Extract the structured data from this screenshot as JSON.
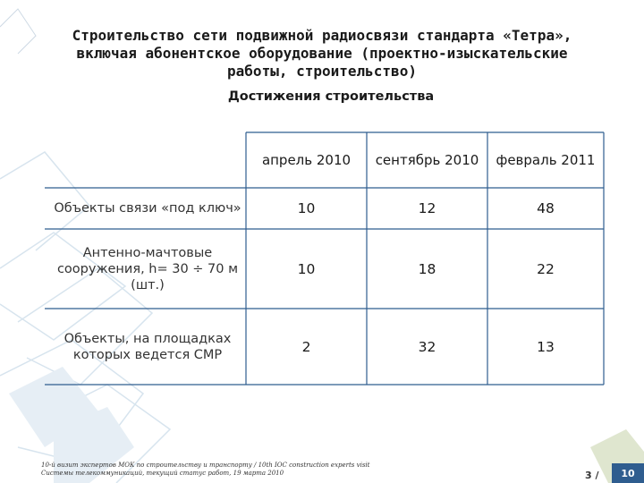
{
  "slide": {
    "title_lines": [
      "Строительство сети подвижной радиосвязи стандарта «Тетра»,",
      "включая абонентское оборудование (проектно-изыскательские",
      "работы, строительство)"
    ],
    "subtitle": "Достижения строительства"
  },
  "table": {
    "columns": [
      "апрель 2010",
      "сентябрь 2010",
      "февраль 2011"
    ],
    "rows": [
      {
        "label": "Объекты связи «под ключ»",
        "values": [
          "10",
          "12",
          "48"
        ]
      },
      {
        "label": "Антенно-мачтовые сооружения, h= 30 ÷ 70 м (шт.)",
        "values": [
          "10",
          "18",
          "22"
        ]
      },
      {
        "label": "Объекты, на площадках которых ведется СМР",
        "values": [
          "2",
          "32",
          "13"
        ]
      }
    ]
  },
  "footer": {
    "lines": [
      "10-й визит экспертов МОК по строительству и транспорту / 10th IOC construction experts visit",
      "Системы телекоммуникаций, текущий статус работ, 19 марта 2010"
    ],
    "page_number": "3 /",
    "page_total": "10"
  },
  "colors": {
    "grid_line": "#2f5d8f",
    "background_decoration": "#dfe9f1",
    "footer_box": "#2f5d8f"
  }
}
